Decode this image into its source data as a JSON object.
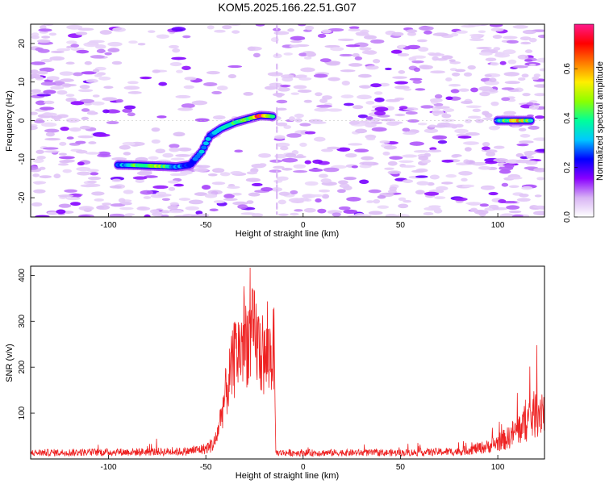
{
  "title": "KOM5.2025.166.22.51.G07",
  "colors": {
    "line": "#ee2222",
    "axis": "#000000"
  },
  "chart_data": [
    {
      "type": "heatmap",
      "xlabel": "Height of straight line (km)",
      "ylabel": "Frequency (Hz)",
      "xlim": [
        -140,
        124
      ],
      "ylim": [
        -25,
        25
      ],
      "xticks": [
        -100,
        -50,
        0,
        50,
        100
      ],
      "yticks": [
        -20,
        -10,
        0,
        10,
        20
      ],
      "colorbar": {
        "label": "Normalized spectral amplitude",
        "range": [
          0,
          0.78
        ],
        "ticks": [
          0.0,
          0.2,
          0.4,
          0.6
        ],
        "tick_labels": [
          "0.0",
          "0.2",
          "0.4",
          "0.6"
        ],
        "colormap": [
          "#ffffff",
          "#d8b4f4",
          "#8a00ff",
          "#0000ff",
          "#00c8ff",
          "#00ff9a",
          "#8cff00",
          "#ffee00",
          "#ff7a00",
          "#ff0000",
          "#ff1a8c"
        ]
      },
      "ridge": {
        "description_points": [
          {
            "x": -95,
            "y": -11.5,
            "a": 0.25
          },
          {
            "x": -85,
            "y": -11.6,
            "a": 0.45
          },
          {
            "x": -75,
            "y": -11.8,
            "a": 0.5
          },
          {
            "x": -65,
            "y": -12.0,
            "a": 0.3
          },
          {
            "x": -58,
            "y": -11.5,
            "a": 0.25
          },
          {
            "x": -52,
            "y": -8,
            "a": 0.3
          },
          {
            "x": -48,
            "y": -4,
            "a": 0.3
          },
          {
            "x": -42,
            "y": -2,
            "a": 0.35
          },
          {
            "x": -35,
            "y": -0.5,
            "a": 0.4
          },
          {
            "x": -28,
            "y": 0.5,
            "a": 0.4
          },
          {
            "x": -22,
            "y": 1.3,
            "a": 0.75
          },
          {
            "x": -18,
            "y": 1.2,
            "a": 0.5
          },
          {
            "x": -15,
            "y": 1.0,
            "a": 0.3
          }
        ],
        "right_segment": [
          {
            "x": 100,
            "y": 0.0,
            "a": 0.3
          },
          {
            "x": 110,
            "y": 0.0,
            "a": 0.6
          },
          {
            "x": 118,
            "y": 0.0,
            "a": 0.4
          }
        ]
      }
    },
    {
      "type": "line",
      "xlabel": "Height of straight line (km)",
      "ylabel": "SNR (v/v)",
      "xlim": [
        -140,
        124
      ],
      "ylim": [
        0,
        420
      ],
      "xticks": [
        -100,
        -50,
        0,
        50,
        100
      ],
      "yticks": [
        100,
        200,
        300,
        400
      ],
      "series": [
        {
          "color": "#ee2222",
          "envelope": [
            {
              "x": -140,
              "y": 15
            },
            {
              "x": -60,
              "y": 18
            },
            {
              "x": -50,
              "y": 25
            },
            {
              "x": -45,
              "y": 40
            },
            {
              "x": -40,
              "y": 150
            },
            {
              "x": -35,
              "y": 240
            },
            {
              "x": -30,
              "y": 280
            },
            {
              "x": -25,
              "y": 290
            },
            {
              "x": -20,
              "y": 230
            },
            {
              "x": -15,
              "y": 260
            },
            {
              "x": -14,
              "y": 15
            },
            {
              "x": 50,
              "y": 15
            },
            {
              "x": 80,
              "y": 18
            },
            {
              "x": 95,
              "y": 30
            },
            {
              "x": 105,
              "y": 50
            },
            {
              "x": 115,
              "y": 90
            },
            {
              "x": 124,
              "y": 130
            }
          ]
        }
      ]
    }
  ],
  "tick_labels": {
    "x": [
      "-100",
      "-50",
      "0",
      "50",
      "100"
    ],
    "y_top": [
      "20",
      "10",
      "0",
      "-10",
      "-20"
    ],
    "y_bottom": [
      "400",
      "300",
      "200",
      "100"
    ]
  }
}
